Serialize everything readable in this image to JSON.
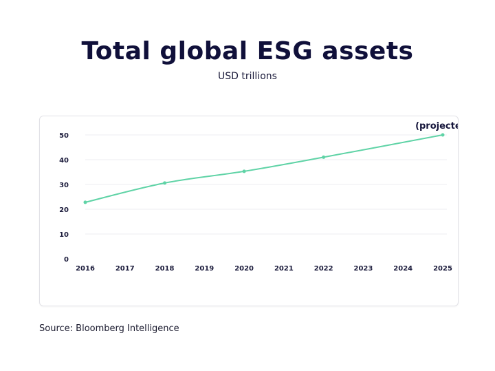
{
  "chart_data": {
    "type": "line",
    "title": "Total global ESG assets",
    "subtitle": "USD trillions",
    "categories": [
      "2016",
      "2017",
      "2018",
      "2019",
      "2020",
      "2021",
      "2022",
      "2023",
      "2024",
      "2025"
    ],
    "series": [
      {
        "x": [
          "2016",
          "2018",
          "2020",
          "2022",
          "2025"
        ],
        "values": [
          22.8,
          30.6,
          35.3,
          41.0,
          50.0
        ]
      }
    ],
    "ylim": [
      0,
      50
    ],
    "yticks": [
      0,
      10,
      20,
      30,
      40,
      50
    ],
    "grid": true,
    "annotation": {
      "text": "(projected)",
      "x": "2025"
    },
    "source": "Source: Bloomberg Intelligence",
    "colors": {
      "line": "#5fd3a6",
      "grid": "#ececf0",
      "text": "#14143a"
    }
  }
}
